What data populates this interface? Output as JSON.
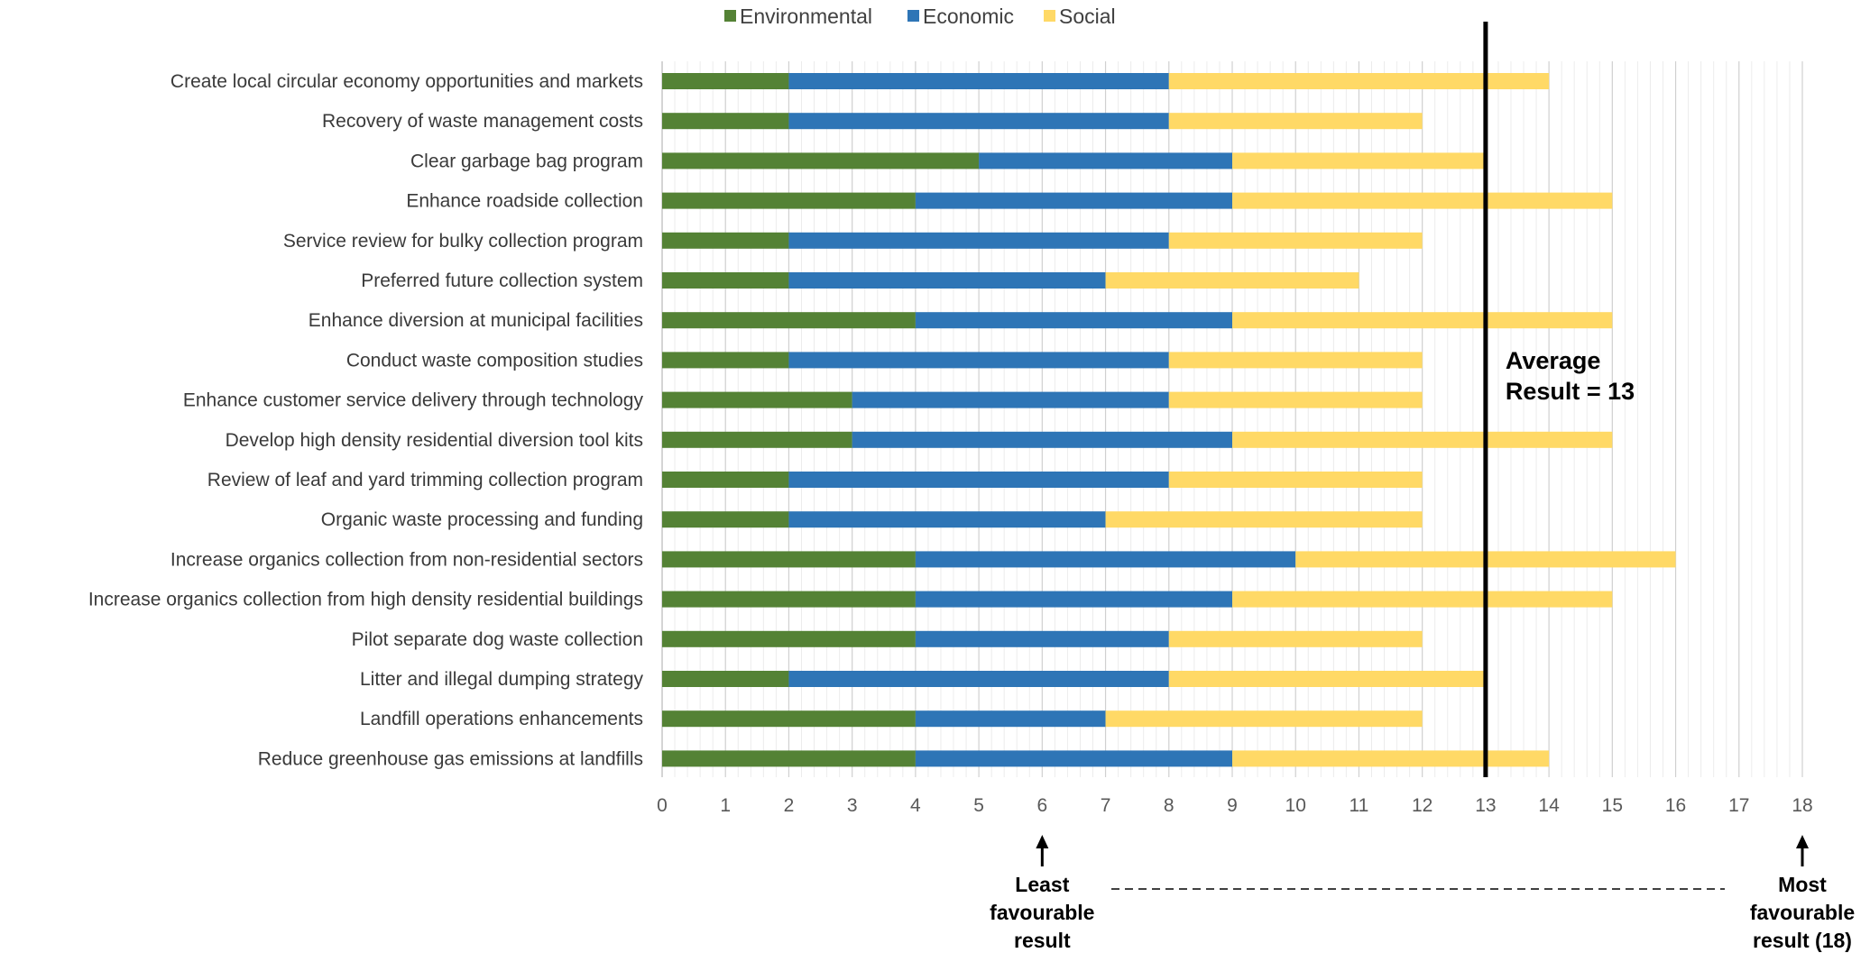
{
  "chart_data": {
    "type": "bar",
    "orientation": "horizontal",
    "stacked": true,
    "xlim": [
      0,
      18
    ],
    "xticks": [
      0,
      1,
      2,
      3,
      4,
      5,
      6,
      7,
      8,
      9,
      10,
      11,
      12,
      13,
      14,
      15,
      16,
      17,
      18
    ],
    "grid": "vertical",
    "legend_position": "top-center",
    "categories": [
      "Create local circular economy opportunities and markets",
      "Recovery of waste management costs",
      "Clear garbage bag program",
      "Enhance roadside collection",
      "Service review for bulky collection program",
      "Preferred future collection system",
      "Enhance diversion at municipal facilities",
      "Conduct waste composition studies",
      "Enhance customer service delivery through technology",
      "Develop high density residential diversion tool kits",
      "Review of leaf and yard trimming collection program",
      "Organic waste processing and funding",
      "Increase organics collection from non-residential sectors",
      "Increase organics collection from high density residential buildings",
      "Pilot separate dog waste collection",
      "Litter and illegal dumping strategy",
      "Landfill operations enhancements",
      "Reduce greenhouse gas emissions at landfills"
    ],
    "series": [
      {
        "name": "Environmental",
        "color": "#548235",
        "values": [
          2,
          2,
          5,
          4,
          2,
          2,
          4,
          2,
          3,
          3,
          2,
          2,
          4,
          4,
          4,
          2,
          4,
          4
        ]
      },
      {
        "name": "Economic",
        "color": "#2E75B6",
        "values": [
          6,
          6,
          4,
          5,
          6,
          5,
          5,
          6,
          5,
          6,
          6,
          5,
          6,
          5,
          4,
          6,
          3,
          5
        ]
      },
      {
        "name": "Social",
        "color": "#FFD966",
        "values": [
          6,
          4,
          4,
          6,
          4,
          4,
          6,
          4,
          4,
          6,
          4,
          5,
          6,
          6,
          4,
          5,
          5,
          5
        ]
      }
    ],
    "reference_line": {
      "value": 13,
      "label_line1": "Average",
      "label_line2": "Result = 13"
    },
    "annotations": {
      "least": {
        "value": 6,
        "lines": [
          "Least",
          "favourable",
          "result"
        ]
      },
      "most": {
        "value": 18,
        "lines": [
          "Most",
          "favourable",
          "result (18)"
        ]
      }
    }
  }
}
